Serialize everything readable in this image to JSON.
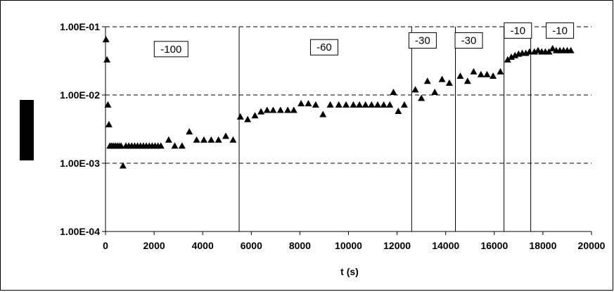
{
  "chart_data": {
    "type": "scatter",
    "title": "",
    "xlabel": "t (s)",
    "ylabel": "",
    "xlim": [
      0,
      20000
    ],
    "ylim": [
      0.0001,
      0.1
    ],
    "yscale": "log",
    "grid": "horizontal dashed",
    "legend": "none",
    "marker": "triangle",
    "marker_color": "#000000",
    "x_ticks": [
      {
        "value": 0,
        "label": "0"
      },
      {
        "value": 2000,
        "label": "2000"
      },
      {
        "value": 4000,
        "label": "4000"
      },
      {
        "value": 6000,
        "label": "6000"
      },
      {
        "value": 8000,
        "label": "8000"
      },
      {
        "value": 10000,
        "label": "10000"
      },
      {
        "value": 12000,
        "label": "12000"
      },
      {
        "value": 14000,
        "label": "14000"
      },
      {
        "value": 16000,
        "label": "16000"
      },
      {
        "value": 18000,
        "label": "18000"
      },
      {
        "value": 20000,
        "label": "20000"
      }
    ],
    "y_ticks": [
      {
        "value": 0.1,
        "label": "1.00E-01"
      },
      {
        "value": 0.01,
        "label": "1.00E-02"
      },
      {
        "value": 0.001,
        "label": "1.00E-03"
      },
      {
        "value": 0.0001,
        "label": "1.00E-04"
      }
    ],
    "vertical_lines": [
      5500,
      12600,
      14400,
      16400,
      17500
    ],
    "annotations": [
      {
        "label": "-100",
        "x": 2700,
        "y": 0.047
      },
      {
        "label": "-60",
        "x": 9000,
        "y": 0.05
      },
      {
        "label": "-30",
        "x": 13050,
        "y": 0.063
      },
      {
        "label": "-30",
        "x": 14950,
        "y": 0.063
      },
      {
        "label": "-10",
        "x": 16970,
        "y": 0.088
      },
      {
        "label": "-10",
        "x": 18700,
        "y": 0.088
      }
    ],
    "series": [
      {
        "x": [
          20,
          60,
          100,
          140,
          180,
          250,
          320,
          400,
          480,
          560,
          640,
          720,
          840,
          960,
          1080,
          1200,
          1320,
          1440,
          1560,
          1680,
          1800,
          1920,
          2040,
          2160,
          2280,
          2600,
          2850,
          3150,
          3450,
          3750,
          4050,
          4350,
          4650,
          4950,
          5250,
          5550,
          5850,
          6150,
          6400,
          6650,
          6900,
          7200,
          7500,
          7750,
          8050,
          8350,
          8650,
          8950,
          9250,
          9600,
          9900,
          10200,
          10450,
          10700,
          10950,
          11200,
          11450,
          11700,
          11850,
          12050,
          12300,
          12750,
          13000,
          13250,
          13550,
          13850,
          14150,
          14600,
          14900,
          15150,
          15450,
          15700,
          15950,
          16250,
          16550,
          16700,
          16850,
          17000,
          17150,
          17300,
          17450,
          17650,
          17800,
          17950,
          18100,
          18250,
          18400,
          18550,
          18700,
          18850,
          19000,
          19150
        ],
        "y": [
          0.065,
          0.033,
          0.0072,
          0.0037,
          0.0018,
          0.0018,
          0.0018,
          0.0018,
          0.0018,
          0.0018,
          0.0018,
          0.00092,
          0.0018,
          0.0018,
          0.0018,
          0.0018,
          0.0018,
          0.0018,
          0.0018,
          0.0018,
          0.0018,
          0.0018,
          0.0018,
          0.0018,
          0.0018,
          0.0022,
          0.0018,
          0.0018,
          0.0029,
          0.0022,
          0.0022,
          0.0022,
          0.0022,
          0.0025,
          0.0022,
          0.0048,
          0.0044,
          0.005,
          0.0057,
          0.006,
          0.006,
          0.006,
          0.006,
          0.006,
          0.0075,
          0.0075,
          0.0072,
          0.0052,
          0.0072,
          0.0072,
          0.0072,
          0.0072,
          0.0072,
          0.0072,
          0.0072,
          0.0072,
          0.0072,
          0.0072,
          0.011,
          0.0058,
          0.0072,
          0.012,
          0.009,
          0.016,
          0.011,
          0.017,
          0.015,
          0.019,
          0.016,
          0.022,
          0.02,
          0.02,
          0.019,
          0.022,
          0.033,
          0.036,
          0.038,
          0.04,
          0.041,
          0.041,
          0.043,
          0.043,
          0.045,
          0.043,
          0.043,
          0.043,
          0.048,
          0.045,
          0.045,
          0.045,
          0.045,
          0.045
        ]
      }
    ]
  }
}
